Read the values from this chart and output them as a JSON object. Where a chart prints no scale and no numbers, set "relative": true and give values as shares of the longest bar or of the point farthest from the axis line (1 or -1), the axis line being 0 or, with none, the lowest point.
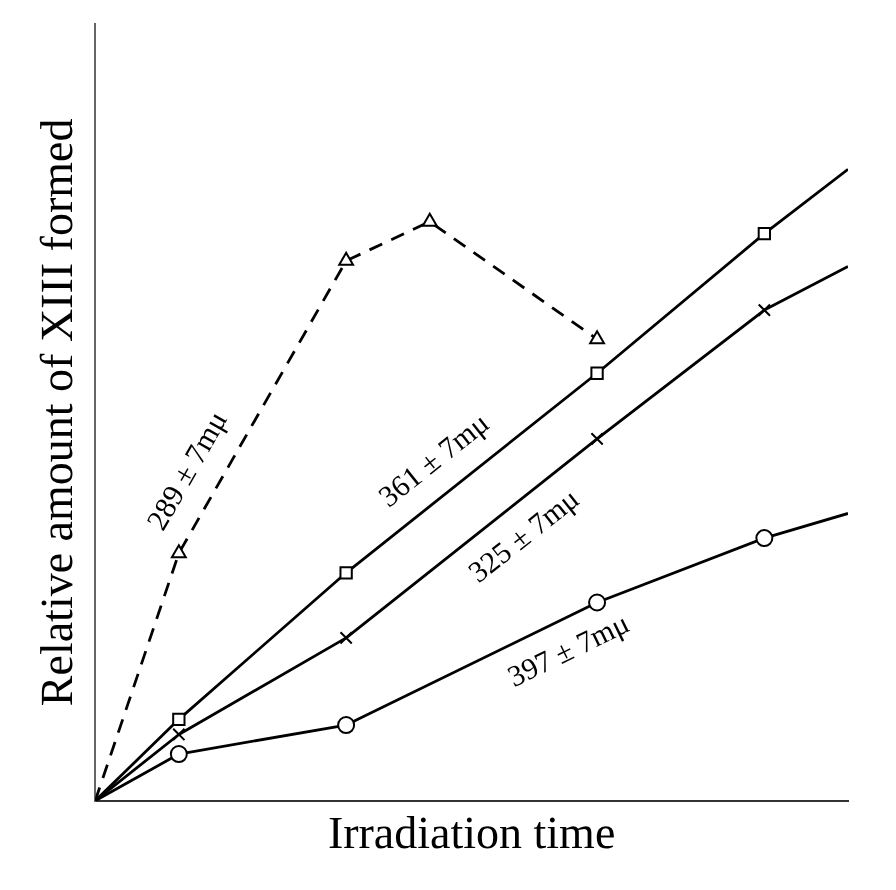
{
  "chart_data": {
    "type": "line",
    "relative": true,
    "xlabel": "Irradiation time",
    "ylabel": "Relative amount of XIII formed",
    "categories": [
      null,
      null,
      null,
      null,
      null,
      null,
      null,
      null,
      null,
      null
    ],
    "series": [
      {
        "color": "#000000",
        "marker": "square",
        "line_style": "solid",
        "values": [
          0,
          0.129,
          null,
          0.361,
          null,
          null,
          0.677,
          null,
          0.898,
          1
        ]
      },
      {
        "color": "#000000",
        "marker": "cross",
        "line_style": "solid",
        "values": [
          0,
          0.105,
          null,
          0.258,
          null,
          null,
          0.573,
          null,
          0.777,
          0.846
        ]
      },
      {
        "color": "#000000",
        "marker": "circle",
        "line_style": "solid",
        "values": [
          0,
          0.074,
          null,
          0.12,
          null,
          null,
          0.314,
          null,
          0.416,
          0.455
        ]
      },
      {
        "color": "#000000",
        "marker": "triangle",
        "line_style": "dashed",
        "values": [
          0,
          0.392,
          null,
          0.855,
          0.917,
          null,
          0.731,
          null,
          null,
          null
        ]
      }
    ],
    "annotations": [
      "289 ± 7mμ",
      "361 ± 7mμ",
      "325 ± 7mμ",
      "397 ± 7mμ"
    ]
  }
}
